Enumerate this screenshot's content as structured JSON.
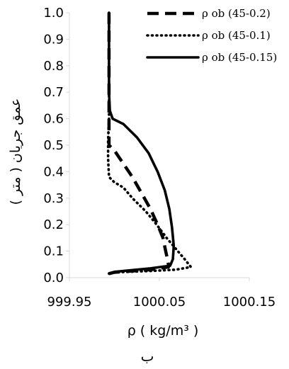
{
  "chart_data": {
    "type": "line",
    "title": "",
    "xlabel": "ρ ( kg/m³ )",
    "ylabel": "عمق جریان ( متر )",
    "panel_label": "ب",
    "xlim": [
      999.95,
      1000.15
    ],
    "ylim": [
      0.0,
      1.0
    ],
    "x_ticks": [
      "999.95",
      "1000.05",
      "1000.15"
    ],
    "x_tick_values": [
      999.95,
      1000.05,
      1000.15
    ],
    "y_ticks": [
      "0.0",
      "0.1",
      "0.2",
      "0.3",
      "0.4",
      "0.5",
      "0.6",
      "0.7",
      "0.8",
      "0.9",
      "1.0"
    ],
    "y_tick_values": [
      0.0,
      0.1,
      0.2,
      0.3,
      0.4,
      0.5,
      0.6,
      0.7,
      0.8,
      0.9,
      1.0
    ],
    "grid": false,
    "legend_position": "top-right",
    "series": [
      {
        "name": "ρ ob (45-0.2)",
        "style": "dashed",
        "color": "#000000",
        "points": [
          [
            999.994,
            1.0
          ],
          [
            999.994,
            0.7
          ],
          [
            999.994,
            0.6
          ],
          [
            999.994,
            0.5
          ],
          [
            1000.0,
            0.48
          ],
          [
            1000.01,
            0.43
          ],
          [
            1000.02,
            0.38
          ],
          [
            1000.03,
            0.32
          ],
          [
            1000.04,
            0.26
          ],
          [
            1000.048,
            0.2
          ],
          [
            1000.054,
            0.15
          ],
          [
            1000.057,
            0.1
          ],
          [
            1000.059,
            0.07
          ],
          [
            1000.06,
            0.05
          ],
          [
            1000.06,
            0.04
          ],
          [
            1000.04,
            0.03
          ],
          [
            1000.0,
            0.02
          ],
          [
            999.994,
            0.015
          ]
        ]
      },
      {
        "name": "ρ ob (45-0.1)",
        "style": "dotted",
        "color": "#000000",
        "points": [
          [
            999.994,
            1.0
          ],
          [
            999.994,
            0.7
          ],
          [
            999.994,
            0.6
          ],
          [
            999.993,
            0.52
          ],
          [
            999.993,
            0.45
          ],
          [
            999.994,
            0.38
          ],
          [
            1000.0,
            0.36
          ],
          [
            1000.01,
            0.34
          ],
          [
            1000.02,
            0.3
          ],
          [
            1000.035,
            0.25
          ],
          [
            1000.047,
            0.2
          ],
          [
            1000.058,
            0.15
          ],
          [
            1000.068,
            0.11
          ],
          [
            1000.078,
            0.07
          ],
          [
            1000.085,
            0.04
          ],
          [
            1000.068,
            0.03
          ],
          [
            1000.04,
            0.025
          ],
          [
            1000.0,
            0.02
          ],
          [
            999.994,
            0.015
          ]
        ]
      },
      {
        "name": "ρ ob (45-0.15)",
        "style": "solid",
        "color": "#000000",
        "points": [
          [
            999.994,
            1.0
          ],
          [
            999.994,
            0.8
          ],
          [
            999.994,
            0.7
          ],
          [
            999.995,
            0.63
          ],
          [
            999.998,
            0.6
          ],
          [
            1000.01,
            0.58
          ],
          [
            1000.025,
            0.53
          ],
          [
            1000.038,
            0.47
          ],
          [
            1000.048,
            0.4
          ],
          [
            1000.056,
            0.33
          ],
          [
            1000.061,
            0.26
          ],
          [
            1000.064,
            0.19
          ],
          [
            1000.066,
            0.12
          ],
          [
            1000.065,
            0.07
          ],
          [
            1000.062,
            0.045
          ],
          [
            1000.04,
            0.035
          ],
          [
            1000.0,
            0.022
          ],
          [
            999.994,
            0.016
          ]
        ]
      }
    ]
  }
}
